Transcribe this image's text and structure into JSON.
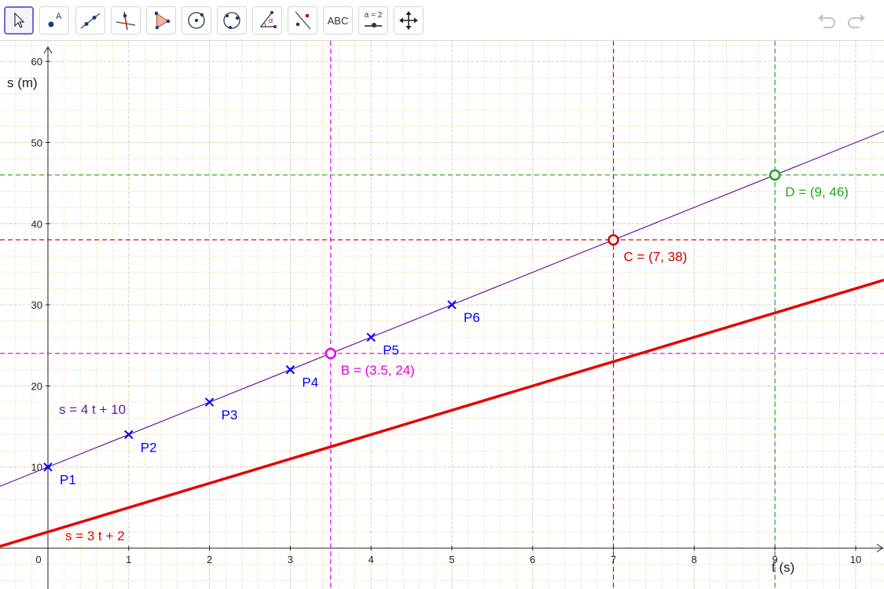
{
  "toolbar": {
    "tools": [
      {
        "name": "move-tool",
        "icon": "arrow-cursor-icon",
        "active": true
      },
      {
        "name": "point-tool",
        "icon": "point-icon",
        "label": "A"
      },
      {
        "name": "line-tool",
        "icon": "line-through-points-icon"
      },
      {
        "name": "perpendicular-tool",
        "icon": "perpendicular-line-icon"
      },
      {
        "name": "polygon-tool",
        "icon": "polygon-icon"
      },
      {
        "name": "circle-center-point-tool",
        "icon": "circle-center-icon"
      },
      {
        "name": "circle-three-points-tool",
        "icon": "circle-three-points-icon"
      },
      {
        "name": "angle-tool",
        "icon": "angle-icon",
        "label": "α"
      },
      {
        "name": "reflect-tool",
        "icon": "reflect-icon"
      },
      {
        "name": "text-tool",
        "icon": "text-icon",
        "label": "ABC"
      },
      {
        "name": "slider-tool",
        "icon": "slider-icon",
        "label": "a = 2"
      },
      {
        "name": "move-graphics-tool",
        "icon": "move-arrows-icon"
      }
    ],
    "undo_icon": "undo-icon",
    "redo_icon": "redo-icon"
  },
  "graph": {
    "x_axis_label": "t (s)",
    "y_axis_label": "s (m)",
    "x_ticks": [
      "0",
      "1",
      "2",
      "3",
      "4",
      "5",
      "6",
      "7",
      "8",
      "9",
      "10"
    ],
    "y_ticks": [
      "10",
      "20",
      "30",
      "40",
      "50",
      "60"
    ],
    "colors": {
      "grid_minor": "#f2c58a",
      "grid_major": "#c9c9c9",
      "purple": "#6a1b9a",
      "red": "#e60000",
      "dark_red": "#cc0000",
      "magenta": "#e600e6",
      "green": "#22a622",
      "blue": "#0000ff"
    },
    "functions": [
      {
        "label": "s = 4 t + 10",
        "slope": 4,
        "intercept": 10,
        "color": "purple",
        "width": 1.2
      },
      {
        "label": "s = 3 t + 2",
        "slope": 3,
        "intercept": 2,
        "color": "red",
        "width": 3.5
      }
    ],
    "points": [
      {
        "label": "P1",
        "t": 0,
        "s": 10
      },
      {
        "label": "P2",
        "t": 1,
        "s": 14
      },
      {
        "label": "P3",
        "t": 2,
        "s": 18
      },
      {
        "label": "P4",
        "t": 3,
        "s": 22
      },
      {
        "label": "P5",
        "t": 4,
        "s": 26
      },
      {
        "label": "P6",
        "t": 5,
        "s": 30
      }
    ],
    "marked_points": [
      {
        "label": "B = (3.5, 24)",
        "t": 3.5,
        "s": 24,
        "color": "magenta"
      },
      {
        "label": "C = (7, 38)",
        "t": 7,
        "s": 38,
        "color": "dark_red"
      },
      {
        "label": "D = (9, 46)",
        "t": 9,
        "s": 46,
        "color": "green"
      }
    ]
  }
}
